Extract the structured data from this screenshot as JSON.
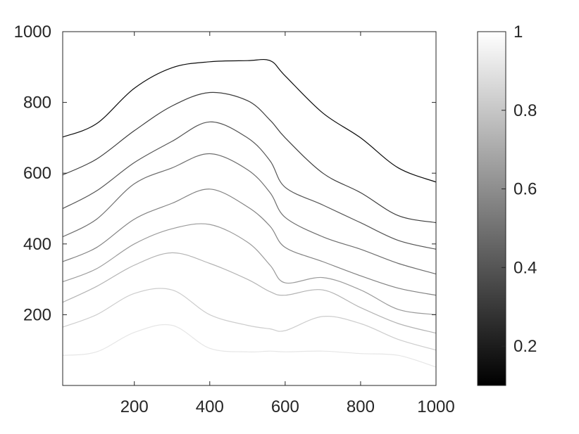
{
  "chart_data": {
    "type": "line",
    "title": "",
    "xlabel": "",
    "ylabel": "",
    "xlim": [
      10,
      1000
    ],
    "ylim": [
      0,
      1000
    ],
    "x_ticks": [
      "200",
      "400",
      "600",
      "800",
      "1000"
    ],
    "y_ticks": [
      "200",
      "400",
      "600",
      "800",
      "1000"
    ],
    "grid": false,
    "legend": "none",
    "colorbar": {
      "colormap": "gray",
      "range": [
        0.1,
        1
      ],
      "ticks": [
        "0.2",
        "0.4",
        "0.6",
        "0.8",
        "1"
      ]
    },
    "x": [
      10,
      100,
      200,
      300,
      400,
      500,
      560,
      600,
      700,
      800,
      900,
      1000
    ],
    "series": [
      {
        "level": 1.0,
        "color": "#e6e6e6",
        "values": [
          85,
          95,
          150,
          170,
          105,
          95,
          97,
          95,
          97,
          90,
          85,
          52
        ]
      },
      {
        "level": 0.9,
        "color": "#cdcdcd",
        "values": [
          165,
          200,
          260,
          270,
          200,
          170,
          160,
          155,
          195,
          175,
          130,
          100
        ]
      },
      {
        "level": 0.8,
        "color": "#b4b4b4",
        "values": [
          235,
          280,
          340,
          375,
          345,
          300,
          265,
          255,
          270,
          220,
          175,
          148
        ]
      },
      {
        "level": 0.7,
        "color": "#9b9b9b",
        "values": [
          293,
          330,
          400,
          443,
          455,
          405,
          340,
          290,
          305,
          270,
          215,
          200
        ]
      },
      {
        "level": 0.6,
        "color": "#828282",
        "values": [
          350,
          390,
          470,
          515,
          555,
          505,
          450,
          390,
          350,
          310,
          275,
          255
        ]
      },
      {
        "level": 0.5,
        "color": "#6e6e6e",
        "values": [
          420,
          470,
          570,
          615,
          655,
          610,
          545,
          475,
          420,
          385,
          345,
          315
        ]
      },
      {
        "level": 0.4,
        "color": "#555555",
        "values": [
          500,
          550,
          630,
          690,
          745,
          700,
          635,
          560,
          510,
          460,
          410,
          385
        ]
      },
      {
        "level": 0.3,
        "color": "#3c3c3c",
        "values": [
          595,
          640,
          720,
          790,
          828,
          805,
          750,
          700,
          600,
          545,
          480,
          460
        ]
      },
      {
        "level": 0.2,
        "color": "#0a0a0a",
        "values": [
          702,
          740,
          840,
          898,
          915,
          918,
          918,
          875,
          770,
          700,
          615,
          575
        ]
      }
    ]
  }
}
